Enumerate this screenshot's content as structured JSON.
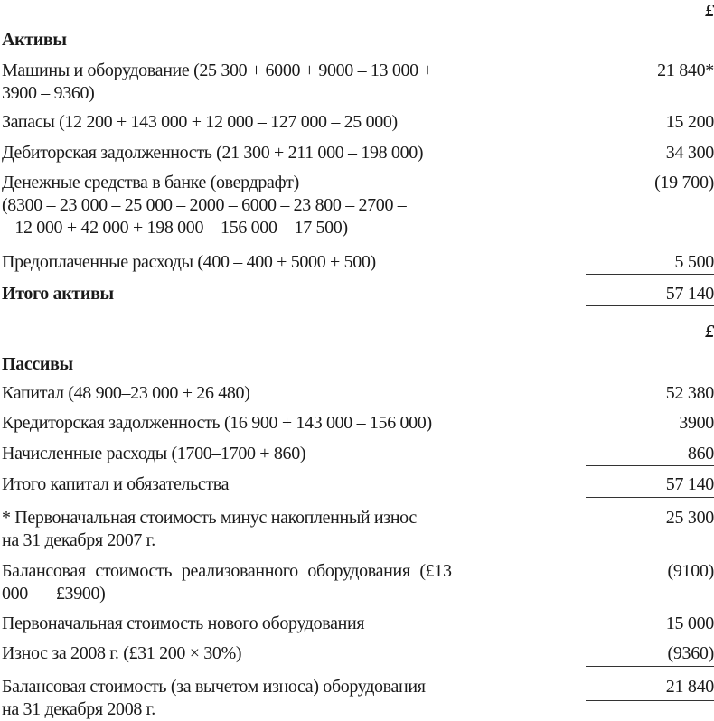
{
  "currency_symbol": "£",
  "assets": {
    "heading": "Активы",
    "rows": [
      {
        "label": "Машины и оборудование (25 300 + 6000 + 9000 – 13 000 +\n3900 – 9360)",
        "value": "21 840*"
      },
      {
        "label": "Запасы (12 200 + 143 000 + 12 000 – 127 000 – 25 000)",
        "value": "15 200"
      },
      {
        "label": "Дебиторская задолженность (21 300 + 211 000 – 198 000)",
        "value": "34 300"
      },
      {
        "label": "Денежные средства в банке (овердрафт)\n(8300 – 23 000 – 25 000 – 2000 – 6000 – 23 800 – 2700 –\n– 12 000 + 42 000 + 198 000 – 156 000 – 17 500)",
        "value": "(19 700)"
      },
      {
        "label": "Предоплаченные расходы (400 – 400 + 5000 + 500)",
        "value": "5 500"
      }
    ],
    "total": {
      "label": "Итого активы",
      "value": "57 140"
    }
  },
  "liabilities": {
    "heading": "Пассивы",
    "rows": [
      {
        "label": "Капитал (48 900–23 000 + 26 480)",
        "value": "52 380"
      },
      {
        "label": "Кредиторская задолженность (16 900 + 143 000 – 156 000)",
        "value": "3900"
      },
      {
        "label": "Начисленные расходы (1700–1700 + 860)",
        "value": "860"
      }
    ],
    "total": {
      "label": "Итого капитал и обязательства",
      "value": "57 140"
    }
  },
  "footnote": {
    "rows": [
      {
        "label": "* Первоначальная стоимость минус накопленный износ\nна 31 декабря 2007 г.",
        "value": "25 300"
      },
      {
        "label": "Балансовая стоимость реализованного оборудования (£13\n000 – £3900)",
        "value": "(9100)"
      },
      {
        "label": "Первоначальная стоимость нового оборудования",
        "value": "15 000"
      },
      {
        "label": "Износ за 2008 г. (£31 200 × 30%)",
        "value": "(9360)"
      },
      {
        "label": "Балансовая стоимость (за вычетом износа) оборудования\nна 31 декабря 2008 г.",
        "value": "21 840"
      }
    ]
  }
}
